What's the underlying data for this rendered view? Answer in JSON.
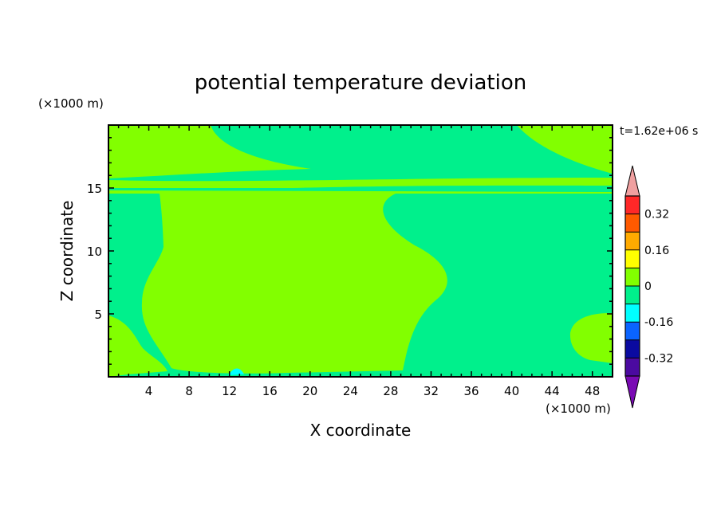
{
  "chart_data": {
    "type": "heatmap",
    "title": "potential temperature deviation",
    "xlabel": "X coordinate",
    "ylabel": "Z coordinate",
    "x_unit": "(×1000 m)",
    "y_unit": "(×1000 m)",
    "time_label": "t=1.62e+06 s",
    "xlim": [
      0,
      50
    ],
    "ylim": [
      0,
      20
    ],
    "x_ticks": [
      4,
      8,
      12,
      16,
      20,
      24,
      28,
      32,
      36,
      40,
      44,
      48
    ],
    "y_ticks": [
      5,
      10,
      15
    ],
    "colorbar": {
      "levels": [
        -0.4,
        -0.32,
        -0.24,
        -0.16,
        -0.08,
        0,
        0.08,
        0.16,
        0.24,
        0.32,
        0.4
      ],
      "colors": [
        "#4b0aa0",
        "#0a0aa0",
        "#0a64ff",
        "#00ffff",
        "#00f08c",
        "#82ff00",
        "#ffff00",
        "#ffaa00",
        "#ff5a00",
        "#ff2828"
      ],
      "under_color": "#7a0ab4",
      "over_color": "#f0a0a0",
      "tick_labels": [
        "0.32",
        "0.16",
        "0",
        "-0.16",
        "-0.32"
      ],
      "tick_values": [
        0.32,
        0.16,
        0,
        -0.16,
        -0.32
      ]
    },
    "grid": false,
    "legend": "colorbar-right"
  }
}
